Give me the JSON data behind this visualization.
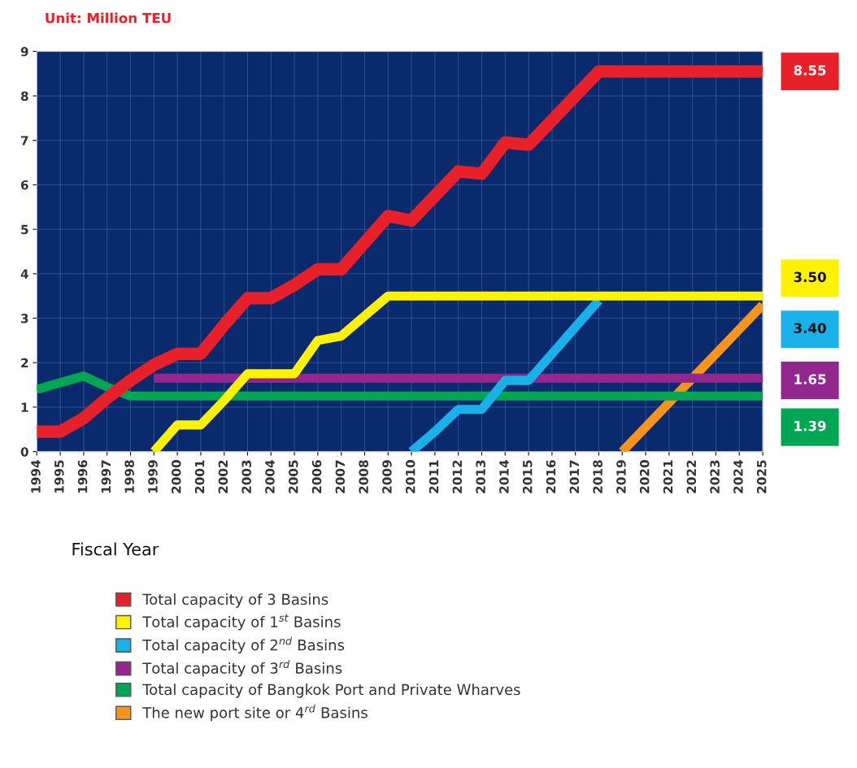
{
  "chart_data": {
    "type": "line",
    "title": "Unit: Million TEU",
    "xlabel": "Fiscal Year",
    "x": [
      1994,
      1995,
      1996,
      1997,
      1998,
      1999,
      2000,
      2001,
      2002,
      2003,
      2004,
      2005,
      2006,
      2007,
      2008,
      2009,
      2010,
      2011,
      2012,
      2013,
      2014,
      2015,
      2016,
      2017,
      2018,
      2019,
      2020,
      2021,
      2022,
      2023,
      2024,
      2025
    ],
    "xlim": [
      1994,
      2025
    ],
    "xticks": [
      1994,
      1995,
      1996,
      1997,
      1998,
      1999,
      2000,
      2001,
      2002,
      2003,
      2004,
      2005,
      2006,
      2007,
      2008,
      2009,
      2010,
      2011,
      2012,
      2013,
      2014,
      2015,
      2016,
      2017,
      2018,
      2019,
      2020,
      2021,
      2022,
      2023,
      2024,
      2025
    ],
    "ylim": [
      0,
      9
    ],
    "yticks": [
      0,
      1,
      2,
      3,
      4,
      5,
      6,
      7,
      8,
      9
    ],
    "grid": true,
    "legend": "bottom",
    "marker": "none",
    "line_style": "solid",
    "series": [
      {
        "name": "Total capacity of 3 Basins",
        "color": "#e8202a",
        "values": [
          0.45,
          0.45,
          0.75,
          1.2,
          1.6,
          1.95,
          2.2,
          2.2,
          2.85,
          3.45,
          3.45,
          3.75,
          4.1,
          4.1,
          4.7,
          5.3,
          5.2,
          5.75,
          6.3,
          6.25,
          6.95,
          6.9,
          7.45,
          8.0,
          8.55,
          8.55,
          8.55,
          8.55,
          8.55,
          8.55,
          8.55,
          8.55
        ]
      },
      {
        "name": "Total capacity of 1$^{st}$ Basins",
        "color": "#fff200",
        "values": [
          null,
          null,
          null,
          null,
          null,
          0,
          0.6,
          0.6,
          1.15,
          1.75,
          1.75,
          1.75,
          2.5,
          2.6,
          3.05,
          3.5,
          3.5,
          3.5,
          3.5,
          3.5,
          3.5,
          3.5,
          3.5,
          3.5,
          3.5,
          3.5,
          3.5,
          3.5,
          3.5,
          3.5,
          3.5,
          3.5
        ]
      },
      {
        "name": "Total capacity of 2$^{nd}$ Basins",
        "color": "#1ab0e8",
        "values": [
          null,
          null,
          null,
          null,
          null,
          null,
          null,
          null,
          null,
          null,
          null,
          null,
          null,
          null,
          null,
          null,
          0,
          0.45,
          0.95,
          0.95,
          1.6,
          1.6,
          2.2,
          2.8,
          3.4,
          null,
          null,
          null,
          null,
          null,
          null,
          null
        ]
      },
      {
        "name": "Total capacity of 3$^{rd}$ Basins",
        "color": "#92278f",
        "values": [
          null,
          null,
          null,
          null,
          null,
          1.65,
          1.65,
          1.65,
          1.65,
          1.65,
          1.65,
          1.65,
          1.65,
          1.65,
          1.65,
          1.65,
          1.65,
          1.65,
          1.65,
          1.65,
          1.65,
          1.65,
          1.65,
          1.65,
          1.65,
          1.65,
          1.65,
          1.65,
          1.65,
          1.65,
          1.65,
          1.65
        ]
      },
      {
        "name": "Total capacity of Bangkok Port and Private Wharves",
        "color": "#00a651",
        "values": [
          1.4,
          1.55,
          1.7,
          1.45,
          1.25,
          1.25,
          1.25,
          1.25,
          1.25,
          1.25,
          1.25,
          1.25,
          1.25,
          1.25,
          1.25,
          1.25,
          1.25,
          1.25,
          1.25,
          1.25,
          1.25,
          1.25,
          1.25,
          1.25,
          1.25,
          1.25,
          1.25,
          1.25,
          1.25,
          1.25,
          1.25,
          1.25
        ]
      },
      {
        "name": "The new port site or 4$^{rd}$ Basins",
        "color": "#f7941d",
        "values": [
          null,
          null,
          null,
          null,
          null,
          null,
          null,
          null,
          null,
          null,
          null,
          null,
          null,
          null,
          null,
          null,
          null,
          null,
          null,
          null,
          null,
          null,
          null,
          null,
          null,
          0,
          0.55,
          1.1,
          1.65,
          2.2,
          2.75,
          3.3
        ]
      }
    ],
    "annotations": [
      "8.55",
      "3.50",
      "3.40",
      "1.65",
      "1.39"
    ]
  }
}
